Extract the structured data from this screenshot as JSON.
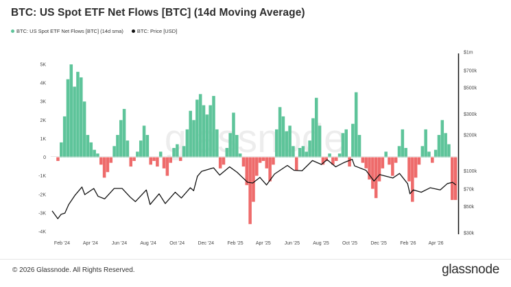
{
  "header": {
    "title": "BTC: US Spot ETF Net Flows [BTC] (14d Moving Average)"
  },
  "legend": [
    {
      "label": "BTC: US Spot ETF Net Flows [BTC] (14d sma)",
      "color": "#5ec49a"
    },
    {
      "label": "BTC: Price [USD]",
      "color": "#111111"
    }
  ],
  "watermark": "glassnode",
  "footer": {
    "copyright": "© 2026 Glassnode. All Rights Reserved.",
    "brand": "glassnode"
  },
  "chart_data": {
    "type": "bar",
    "colors": {
      "positive": "#5ec49a",
      "negative": "#ee6b6b",
      "price_line": "#111111"
    },
    "x_ticks": [
      "Feb '24",
      "Apr '24",
      "Jun '24",
      "Aug '24",
      "Oct '24",
      "Dec '24",
      "Feb '25",
      "Apr '25",
      "Jun '25",
      "Aug '25",
      "Oct '25",
      "Dec '25",
      "Feb '26",
      "Apr '26"
    ],
    "y_left_ticks": [
      "5K",
      "4K",
      "3K",
      "2K",
      "1K",
      "0",
      "-1K",
      "-2K",
      "-3K",
      "-4K"
    ],
    "y_left_range": [
      -4000,
      5000
    ],
    "y_right_ticks": [
      "$1m",
      "$700k",
      "$500k",
      "$300k",
      "$200k",
      "$100k",
      "$70k",
      "$50k",
      "$30k"
    ],
    "y_right_scale": "log",
    "y_right_range": [
      30000,
      1000000
    ],
    "grid": false,
    "x_start": "2024-01-11",
    "x_end": "2026-05-15",
    "series": [
      {
        "name": "BTC: US Spot ETF Net Flows [BTC] (14d sma)",
        "kind": "bar",
        "points": [
          [
            "2024-01-20",
            -200
          ],
          [
            "2024-01-27",
            800
          ],
          [
            "2024-02-03",
            2200
          ],
          [
            "2024-02-10",
            4200
          ],
          [
            "2024-02-17",
            5000
          ],
          [
            "2024-02-24",
            3800
          ],
          [
            "2024-03-02",
            4600
          ],
          [
            "2024-03-09",
            4300
          ],
          [
            "2024-03-16",
            3000
          ],
          [
            "2024-03-23",
            1200
          ],
          [
            "2024-03-30",
            800
          ],
          [
            "2024-04-06",
            400
          ],
          [
            "2024-04-13",
            200
          ],
          [
            "2024-04-20",
            -400
          ],
          [
            "2024-04-27",
            -1100
          ],
          [
            "2024-05-04",
            -800
          ],
          [
            "2024-05-11",
            -300
          ],
          [
            "2024-05-18",
            600
          ],
          [
            "2024-05-25",
            1200
          ],
          [
            "2024-06-01",
            2000
          ],
          [
            "2024-06-08",
            2600
          ],
          [
            "2024-06-15",
            900
          ],
          [
            "2024-06-22",
            -500
          ],
          [
            "2024-06-29",
            -200
          ],
          [
            "2024-07-06",
            300
          ],
          [
            "2024-07-13",
            900
          ],
          [
            "2024-07-20",
            1700
          ],
          [
            "2024-07-27",
            1200
          ],
          [
            "2024-08-03",
            -400
          ],
          [
            "2024-08-10",
            -200
          ],
          [
            "2024-08-17",
            -500
          ],
          [
            "2024-08-24",
            300
          ],
          [
            "2024-08-31",
            -600
          ],
          [
            "2024-09-07",
            -1000
          ],
          [
            "2024-09-14",
            -300
          ],
          [
            "2024-09-21",
            500
          ],
          [
            "2024-09-28",
            700
          ],
          [
            "2024-10-05",
            -200
          ],
          [
            "2024-10-12",
            600
          ],
          [
            "2024-10-19",
            1500
          ],
          [
            "2024-10-26",
            2500
          ],
          [
            "2024-11-02",
            2000
          ],
          [
            "2024-11-09",
            3100
          ],
          [
            "2024-11-16",
            3400
          ],
          [
            "2024-11-23",
            2800
          ],
          [
            "2024-11-30",
            2300
          ],
          [
            "2024-12-07",
            2800
          ],
          [
            "2024-12-14",
            3300
          ],
          [
            "2024-12-21",
            1500
          ],
          [
            "2024-12-28",
            -600
          ],
          [
            "2025-01-04",
            -400
          ],
          [
            "2025-01-11",
            500
          ],
          [
            "2025-01-18",
            1300
          ],
          [
            "2025-01-25",
            2400
          ],
          [
            "2025-02-01",
            1200
          ],
          [
            "2025-02-08",
            200
          ],
          [
            "2025-02-15",
            -500
          ],
          [
            "2025-02-22",
            -1500
          ],
          [
            "2025-03-01",
            -3600
          ],
          [
            "2025-03-08",
            -2400
          ],
          [
            "2025-03-15",
            -1000
          ],
          [
            "2025-03-22",
            -300
          ],
          [
            "2025-03-29",
            -200
          ],
          [
            "2025-04-05",
            -600
          ],
          [
            "2025-04-12",
            -1300
          ],
          [
            "2025-04-19",
            -400
          ],
          [
            "2025-04-26",
            1500
          ],
          [
            "2025-05-03",
            2700
          ],
          [
            "2025-05-10",
            2200
          ],
          [
            "2025-05-17",
            1400
          ],
          [
            "2025-05-24",
            1700
          ],
          [
            "2025-05-31",
            600
          ],
          [
            "2025-06-07",
            -700
          ],
          [
            "2025-06-14",
            500
          ],
          [
            "2025-06-21",
            600
          ],
          [
            "2025-06-28",
            300
          ],
          [
            "2025-07-05",
            900
          ],
          [
            "2025-07-12",
            2100
          ],
          [
            "2025-07-19",
            3200
          ],
          [
            "2025-07-26",
            1700
          ],
          [
            "2025-08-02",
            -400
          ],
          [
            "2025-08-09",
            -200
          ],
          [
            "2025-08-16",
            200
          ],
          [
            "2025-08-23",
            -400
          ],
          [
            "2025-08-30",
            -200
          ],
          [
            "2025-09-06",
            200
          ],
          [
            "2025-09-13",
            1300
          ],
          [
            "2025-09-20",
            1500
          ],
          [
            "2025-09-27",
            -500
          ],
          [
            "2025-10-04",
            1800
          ],
          [
            "2025-10-11",
            3500
          ],
          [
            "2025-10-18",
            1200
          ],
          [
            "2025-10-25",
            -300
          ],
          [
            "2025-11-01",
            -600
          ],
          [
            "2025-11-08",
            -1200
          ],
          [
            "2025-11-15",
            -1700
          ],
          [
            "2025-11-22",
            -2200
          ],
          [
            "2025-11-29",
            -1300
          ],
          [
            "2025-12-06",
            -600
          ],
          [
            "2025-12-13",
            300
          ],
          [
            "2025-12-20",
            -400
          ],
          [
            "2025-12-27",
            -1000
          ],
          [
            "2026-01-03",
            -300
          ],
          [
            "2026-01-10",
            600
          ],
          [
            "2026-01-17",
            1500
          ],
          [
            "2026-01-24",
            500
          ],
          [
            "2026-01-31",
            -1300
          ],
          [
            "2026-02-07",
            -2400
          ],
          [
            "2026-02-14",
            -1100
          ],
          [
            "2026-02-21",
            -400
          ],
          [
            "2026-02-28",
            600
          ],
          [
            "2026-03-07",
            1500
          ],
          [
            "2026-03-14",
            300
          ],
          [
            "2026-03-21",
            -300
          ],
          [
            "2026-03-28",
            400
          ],
          [
            "2026-04-04",
            1200
          ],
          [
            "2026-04-11",
            2000
          ],
          [
            "2026-04-18",
            1300
          ],
          [
            "2026-04-25",
            700
          ],
          [
            "2026-05-02",
            -2300
          ],
          [
            "2026-05-09",
            -2300
          ]
        ]
      },
      {
        "name": "BTC: Price [USD]",
        "kind": "line",
        "points": [
          [
            "2024-01-11",
            46000
          ],
          [
            "2024-01-23",
            39500
          ],
          [
            "2024-01-30",
            43000
          ],
          [
            "2024-02-07",
            44000
          ],
          [
            "2024-02-15",
            52000
          ],
          [
            "2024-02-28",
            62000
          ],
          [
            "2024-03-14",
            73000
          ],
          [
            "2024-03-20",
            63000
          ],
          [
            "2024-04-08",
            71000
          ],
          [
            "2024-04-17",
            61000
          ],
          [
            "2024-05-01",
            58000
          ],
          [
            "2024-05-21",
            71000
          ],
          [
            "2024-06-07",
            71000
          ],
          [
            "2024-06-24",
            60000
          ],
          [
            "2024-07-05",
            55000
          ],
          [
            "2024-07-28",
            69000
          ],
          [
            "2024-08-05",
            52000
          ],
          [
            "2024-08-24",
            64000
          ],
          [
            "2024-09-06",
            53000
          ],
          [
            "2024-09-27",
            66000
          ],
          [
            "2024-10-10",
            59000
          ],
          [
            "2024-10-29",
            72000
          ],
          [
            "2024-11-05",
            68000
          ],
          [
            "2024-11-13",
            90000
          ],
          [
            "2024-11-22",
            99000
          ],
          [
            "2024-12-17",
            106000
          ],
          [
            "2024-12-30",
            92000
          ],
          [
            "2025-01-20",
            108000
          ],
          [
            "2025-02-05",
            97000
          ],
          [
            "2025-02-27",
            80000
          ],
          [
            "2025-03-10",
            79000
          ],
          [
            "2025-03-25",
            88000
          ],
          [
            "2025-04-08",
            76000
          ],
          [
            "2025-04-25",
            94000
          ],
          [
            "2025-05-22",
            111000
          ],
          [
            "2025-06-05",
            101000
          ],
          [
            "2025-06-22",
            100000
          ],
          [
            "2025-07-14",
            122000
          ],
          [
            "2025-08-02",
            113000
          ],
          [
            "2025-08-14",
            124000
          ],
          [
            "2025-09-01",
            108000
          ],
          [
            "2025-09-18",
            117000
          ],
          [
            "2025-10-06",
            125000
          ],
          [
            "2025-10-11",
            110000
          ],
          [
            "2025-11-04",
            101000
          ],
          [
            "2025-11-21",
            82000
          ],
          [
            "2025-12-03",
            93000
          ],
          [
            "2025-12-31",
            87000
          ],
          [
            "2026-01-14",
            95000
          ],
          [
            "2026-01-31",
            78000
          ],
          [
            "2026-02-05",
            64000
          ],
          [
            "2026-02-12",
            69000
          ],
          [
            "2026-03-01",
            66000
          ],
          [
            "2026-03-20",
            72000
          ],
          [
            "2026-04-10",
            69000
          ],
          [
            "2026-04-25",
            78000
          ],
          [
            "2026-05-06",
            80000
          ],
          [
            "2026-05-13",
            76000
          ]
        ]
      }
    ]
  }
}
